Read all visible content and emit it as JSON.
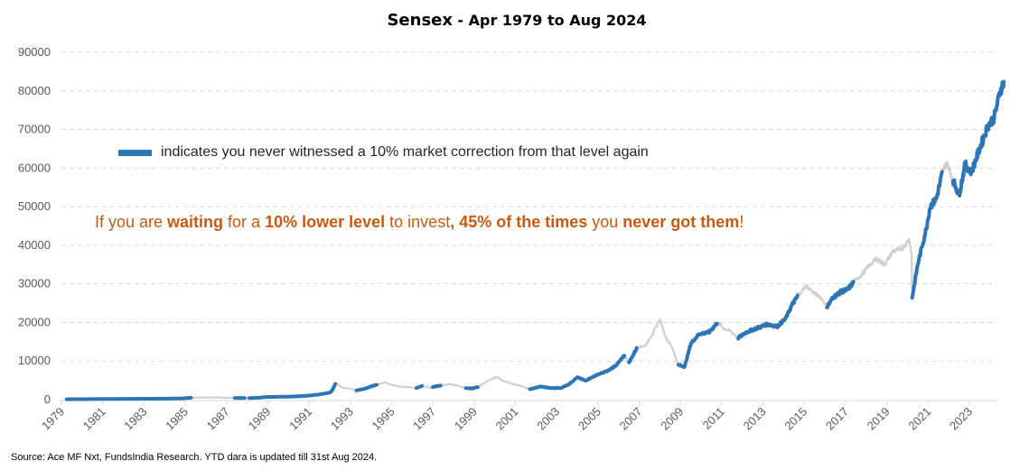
{
  "chart_data": {
    "type": "line",
    "title": "Sensex",
    "subtitle": "- Apr 1979 to Aug 2024",
    "xlabel": "",
    "ylabel": "",
    "xlim": [
      1979,
      2024.67
    ],
    "ylim": [
      0,
      90000
    ],
    "yticks": [
      0,
      10000,
      20000,
      30000,
      40000,
      50000,
      60000,
      70000,
      80000,
      90000
    ],
    "xticks": [
      "1979",
      "1981",
      "1983",
      "1985",
      "1987",
      "1989",
      "1991",
      "1993",
      "1995",
      "1997",
      "1999",
      "2001",
      "2003",
      "2005",
      "2007",
      "2009",
      "2011",
      "2013",
      "2015",
      "2017",
      "2019",
      "2021",
      "2023"
    ],
    "grid": "horizontal dashed",
    "legend": {
      "position": "top-left",
      "entries": [
        {
          "label": "indicates you never witnessed a 10% market correction from that level again",
          "color": "#2E75B6"
        }
      ]
    },
    "series": [
      {
        "name": "Sensex",
        "base_color": "#D0D0D0",
        "highlight_color": "#2E75B6",
        "points": [
          [
            1979.25,
            100,
            1
          ],
          [
            1980.0,
            120,
            1
          ],
          [
            1981.0,
            160,
            1
          ],
          [
            1982.0,
            210,
            1
          ],
          [
            1983.0,
            230,
            1
          ],
          [
            1984.0,
            250,
            1
          ],
          [
            1984.9,
            330,
            1
          ],
          [
            1985.3,
            500,
            0
          ],
          [
            1986.0,
            570,
            0
          ],
          [
            1986.6,
            600,
            0
          ],
          [
            1987.0,
            480,
            0
          ],
          [
            1987.4,
            450,
            1
          ],
          [
            1987.9,
            420,
            0
          ],
          [
            1988.1,
            420,
            1
          ],
          [
            1988.5,
            480,
            1
          ],
          [
            1989.0,
            690,
            1
          ],
          [
            1989.6,
            750,
            1
          ],
          [
            1990.0,
            750,
            1
          ],
          [
            1990.6,
            900,
            1
          ],
          [
            1991.0,
            1050,
            1
          ],
          [
            1991.5,
            1350,
            1
          ],
          [
            1992.0,
            1800,
            1
          ],
          [
            1992.1,
            2200,
            1
          ],
          [
            1992.3,
            4300,
            0
          ],
          [
            1992.6,
            3200,
            0
          ],
          [
            1993.0,
            2800,
            0
          ],
          [
            1993.3,
            2400,
            1
          ],
          [
            1993.7,
            2800,
            1
          ],
          [
            1994.0,
            3400,
            1
          ],
          [
            1994.3,
            3900,
            0
          ],
          [
            1994.7,
            4500,
            0
          ],
          [
            1995.0,
            3800,
            0
          ],
          [
            1995.5,
            3300,
            0
          ],
          [
            1996.0,
            3200,
            0
          ],
          [
            1996.2,
            3000,
            1
          ],
          [
            1996.5,
            3600,
            0
          ],
          [
            1996.9,
            3000,
            0
          ],
          [
            1997.0,
            3300,
            1
          ],
          [
            1997.4,
            3700,
            0
          ],
          [
            1997.8,
            4000,
            0
          ],
          [
            1998.2,
            3600,
            0
          ],
          [
            1998.6,
            3000,
            1
          ],
          [
            1998.9,
            2900,
            1
          ],
          [
            1999.2,
            3300,
            0
          ],
          [
            1999.6,
            4700,
            0
          ],
          [
            2000.1,
            5900,
            0
          ],
          [
            2000.4,
            4900,
            0
          ],
          [
            2000.9,
            4000,
            0
          ],
          [
            2001.3,
            3500,
            0
          ],
          [
            2001.7,
            2700,
            1
          ],
          [
            2002.2,
            3400,
            1
          ],
          [
            2002.7,
            3000,
            1
          ],
          [
            2003.2,
            3000,
            1
          ],
          [
            2003.6,
            4000,
            1
          ],
          [
            2004.0,
            5800,
            1
          ],
          [
            2004.4,
            4900,
            1
          ],
          [
            2004.9,
            6300,
            1
          ],
          [
            2005.5,
            7500,
            1
          ],
          [
            2005.9,
            9000,
            1
          ],
          [
            2006.3,
            11500,
            0
          ],
          [
            2006.5,
            9500,
            1
          ],
          [
            2006.9,
            13500,
            0
          ],
          [
            2007.3,
            14000,
            0
          ],
          [
            2007.7,
            17500,
            0
          ],
          [
            2008.0,
            20800,
            0
          ],
          [
            2008.3,
            16000,
            0
          ],
          [
            2008.6,
            13500,
            0
          ],
          [
            2008.9,
            9000,
            1
          ],
          [
            2009.2,
            8500,
            1
          ],
          [
            2009.5,
            14500,
            1
          ],
          [
            2009.9,
            17000,
            1
          ],
          [
            2010.4,
            17500,
            1
          ],
          [
            2010.8,
            20000,
            0
          ],
          [
            2011.1,
            18500,
            0
          ],
          [
            2011.4,
            17800,
            0
          ],
          [
            2011.8,
            16000,
            1
          ],
          [
            2012.2,
            17500,
            1
          ],
          [
            2012.7,
            18500,
            1
          ],
          [
            2013.2,
            19500,
            1
          ],
          [
            2013.7,
            19000,
            1
          ],
          [
            2014.1,
            21000,
            1
          ],
          [
            2014.4,
            24500,
            1
          ],
          [
            2014.7,
            27000,
            0
          ],
          [
            2015.1,
            29500,
            0
          ],
          [
            2015.5,
            27500,
            0
          ],
          [
            2015.8,
            26500,
            0
          ],
          [
            2016.1,
            24000,
            1
          ],
          [
            2016.4,
            26500,
            1
          ],
          [
            2016.8,
            28000,
            1
          ],
          [
            2017.1,
            28500,
            1
          ],
          [
            2017.4,
            30500,
            0
          ],
          [
            2017.8,
            32500,
            0
          ],
          [
            2018.1,
            34500,
            0
          ],
          [
            2018.5,
            36500,
            0
          ],
          [
            2018.9,
            35000,
            0
          ],
          [
            2019.3,
            38500,
            0
          ],
          [
            2019.7,
            39000,
            0
          ],
          [
            2020.1,
            41500,
            0
          ],
          [
            2020.2,
            38000,
            0
          ],
          [
            2020.23,
            26500,
            1
          ],
          [
            2020.5,
            35000,
            1
          ],
          [
            2020.9,
            44000,
            1
          ],
          [
            2021.1,
            50000,
            1
          ],
          [
            2021.4,
            52000,
            1
          ],
          [
            2021.7,
            59000,
            0
          ],
          [
            2021.9,
            61500,
            0
          ],
          [
            2022.2,
            57000,
            1
          ],
          [
            2022.5,
            53000,
            1
          ],
          [
            2022.8,
            61000,
            1
          ],
          [
            2023.1,
            59000,
            1
          ],
          [
            2023.5,
            65000,
            1
          ],
          [
            2023.9,
            71000,
            1
          ],
          [
            2024.2,
            73000,
            1
          ],
          [
            2024.5,
            80000,
            1
          ],
          [
            2024.67,
            82400,
            1
          ]
        ]
      }
    ],
    "annotations": [
      {
        "text_parts": [
          {
            "text": "If you are ",
            "bold": false
          },
          {
            "text": "waiting",
            "bold": true
          },
          {
            "text": " for a ",
            "bold": false
          },
          {
            "text": "10% lower level",
            "bold": true
          },
          {
            "text": " to invest",
            "bold": false
          },
          {
            "text": ", 45% of the times",
            "bold": true
          },
          {
            "text": " you ",
            "bold": false
          },
          {
            "text": "never got them",
            "bold": true
          },
          {
            "text": "!",
            "bold": false
          }
        ],
        "color": "#C55A11"
      }
    ]
  },
  "footer": {
    "source": "Source: Ace MF Nxt, FundsIndia Research. YTD dara is updated till 31st Aug 2024."
  }
}
